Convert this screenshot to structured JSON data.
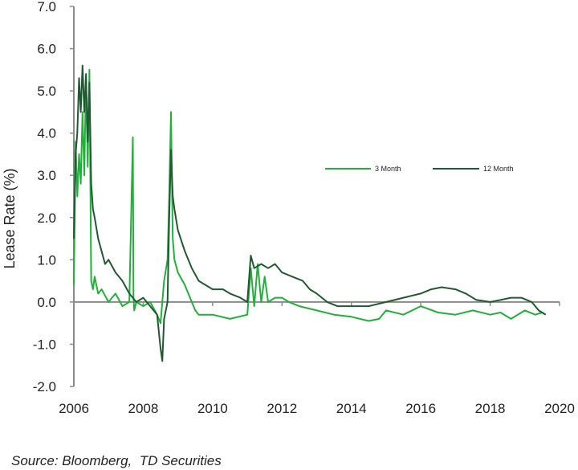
{
  "chart_data": {
    "type": "line",
    "ylabel": "Lease Rate (%)",
    "xlabel": "",
    "xlim": [
      2006,
      2020
    ],
    "ylim": [
      -2.0,
      7.0
    ],
    "x_ticks": [
      "2006",
      "2008",
      "2010",
      "2012",
      "2014",
      "2016",
      "2018",
      "2020"
    ],
    "y_ticks": [
      "7.0",
      "6.0",
      "5.0",
      "4.0",
      "3.0",
      "2.0",
      "1.0",
      "0.0",
      "-1.0",
      "-2.0"
    ],
    "legend_position": "right-middle",
    "series": [
      {
        "name": "3 Month",
        "color": "#22b03a",
        "x": [
          2006.0,
          2006.05,
          2006.1,
          2006.15,
          2006.2,
          2006.25,
          2006.3,
          2006.35,
          2006.4,
          2006.45,
          2006.5,
          2006.55,
          2006.6,
          2006.7,
          2006.8,
          2007.0,
          2007.2,
          2007.4,
          2007.6,
          2007.7,
          2007.72,
          2007.74,
          2007.8,
          2008.0,
          2008.2,
          2008.4,
          2008.5,
          2008.6,
          2008.7,
          2008.75,
          2008.8,
          2008.85,
          2008.9,
          2009.0,
          2009.2,
          2009.4,
          2009.5,
          2009.6,
          2009.8,
          2010.0,
          2010.5,
          2011.0,
          2011.1,
          2011.2,
          2011.3,
          2011.4,
          2011.5,
          2011.6,
          2011.8,
          2012.0,
          2012.2,
          2012.5,
          2013.0,
          2013.5,
          2014.0,
          2014.5,
          2014.8,
          2015.0,
          2015.5,
          2016.0,
          2016.5,
          2017.0,
          2017.5,
          2018.0,
          2018.3,
          2018.6,
          2019.0,
          2019.3,
          2019.5,
          2019.6
        ],
        "y": [
          0.4,
          3.8,
          2.5,
          3.5,
          2.8,
          4.5,
          3.0,
          5.3,
          3.2,
          5.5,
          0.5,
          0.3,
          0.6,
          0.2,
          0.3,
          0.0,
          0.2,
          -0.1,
          0.0,
          3.9,
          0.1,
          -0.2,
          0.0,
          -0.1,
          0.0,
          -0.3,
          -0.5,
          0.5,
          1.0,
          2.5,
          4.5,
          1.5,
          1.0,
          0.7,
          0.4,
          0.0,
          -0.2,
          -0.3,
          -0.3,
          -0.3,
          -0.4,
          -0.3,
          0.8,
          -0.1,
          0.9,
          0.0,
          0.6,
          0.0,
          0.1,
          0.1,
          0.0,
          -0.1,
          -0.2,
          -0.3,
          -0.35,
          -0.45,
          -0.4,
          -0.2,
          -0.3,
          -0.1,
          -0.25,
          -0.3,
          -0.2,
          -0.3,
          -0.25,
          -0.4,
          -0.2,
          -0.3,
          -0.25,
          -0.3
        ]
      },
      {
        "name": "12 Month",
        "color": "#1f5a32",
        "x": [
          2006.0,
          2006.05,
          2006.1,
          2006.15,
          2006.2,
          2006.25,
          2006.3,
          2006.35,
          2006.4,
          2006.45,
          2006.5,
          2006.55,
          2006.6,
          2006.7,
          2006.8,
          2006.9,
          2007.0,
          2007.2,
          2007.4,
          2007.6,
          2007.8,
          2008.0,
          2008.2,
          2008.4,
          2008.5,
          2008.55,
          2008.6,
          2008.7,
          2008.75,
          2008.8,
          2008.85,
          2008.9,
          2009.0,
          2009.2,
          2009.4,
          2009.6,
          2009.8,
          2010.0,
          2010.3,
          2010.5,
          2010.8,
          2011.0,
          2011.1,
          2011.2,
          2011.4,
          2011.6,
          2011.8,
          2012.0,
          2012.3,
          2012.6,
          2012.8,
          2013.0,
          2013.3,
          2013.6,
          2014.0,
          2014.5,
          2015.0,
          2015.5,
          2016.0,
          2016.3,
          2016.6,
          2017.0,
          2017.3,
          2017.6,
          2018.0,
          2018.3,
          2018.6,
          2018.9,
          2019.2,
          2019.4,
          2019.6
        ],
        "y": [
          1.5,
          3.5,
          4.0,
          5.3,
          4.5,
          5.6,
          4.5,
          5.4,
          3.8,
          5.2,
          2.8,
          2.2,
          2.0,
          1.5,
          1.2,
          0.9,
          1.0,
          0.7,
          0.5,
          0.2,
          0.0,
          0.1,
          -0.1,
          -0.3,
          -1.1,
          -1.4,
          -0.4,
          0.0,
          2.0,
          3.6,
          2.5,
          2.2,
          1.7,
          1.2,
          0.8,
          0.5,
          0.4,
          0.3,
          0.3,
          0.2,
          0.1,
          0.0,
          1.1,
          0.8,
          0.9,
          0.8,
          0.9,
          0.7,
          0.6,
          0.5,
          0.3,
          0.2,
          0.0,
          -0.1,
          -0.1,
          -0.1,
          0.0,
          0.1,
          0.2,
          0.3,
          0.35,
          0.3,
          0.2,
          0.05,
          0.0,
          0.05,
          0.1,
          0.1,
          0.0,
          -0.2,
          -0.3
        ]
      }
    ]
  },
  "source_text": "Source: Bloomberg,  TD Securities"
}
